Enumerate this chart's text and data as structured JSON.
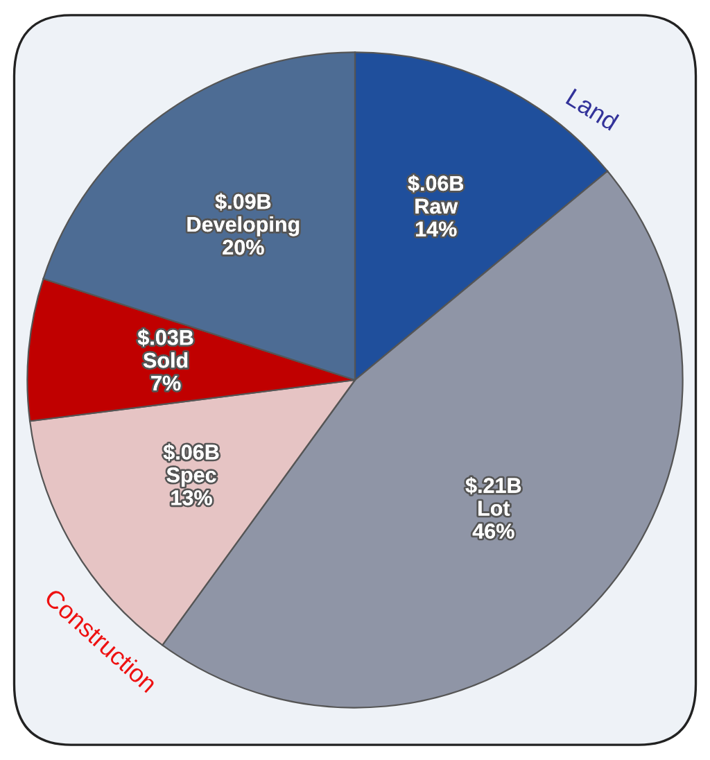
{
  "chart_data": {
    "type": "pie",
    "categories": [
      "$.06B\nRaw",
      "$.21B\nLot",
      "$.06B\nSpec",
      "$.03B\nSold",
      "$.09B\nDeveloping"
    ],
    "values": [
      14,
      46,
      13,
      7,
      20
    ],
    "value_labels": [
      "14%",
      "46%",
      "13%",
      "7%",
      "20%"
    ],
    "colors": [
      "#1f4f9c",
      "#8f95a6",
      "#e6c4c4",
      "#c00000",
      "#4d6c94"
    ],
    "annotations": [
      "Land",
      "Construction"
    ],
    "legend": false
  }
}
